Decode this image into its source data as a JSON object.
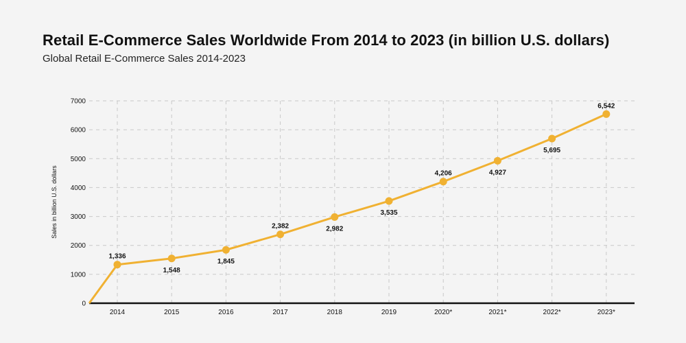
{
  "header": {
    "title": "Retail E-Commerce Sales Worldwide From 2014 to 2023 (in billion U.S. dollars)",
    "subtitle": "Global Retail E-Commerce Sales 2014-2023"
  },
  "chart_data": {
    "type": "line",
    "title": "Retail E-Commerce Sales Worldwide From 2014 to 2023 (in billion U.S. dollars)",
    "subtitle": "Global Retail E-Commerce Sales 2014-2023",
    "xlabel": "",
    "ylabel": "Sales in billion U.S. dollars",
    "categories": [
      "2014",
      "2015",
      "2016",
      "2017",
      "2018",
      "2019",
      "2020*",
      "2021*",
      "2022*",
      "2023*"
    ],
    "values": [
      1336,
      1548,
      1845,
      2382,
      2982,
      3535,
      4206,
      4927,
      5695,
      6542
    ],
    "data_labels": [
      "1,336",
      "1,548",
      "1,845",
      "2,382",
      "2,982",
      "3,535",
      "4,206",
      "4,927",
      "5,695",
      "6,542"
    ],
    "label_positions": [
      "above",
      "below",
      "below",
      "above",
      "below",
      "below",
      "above",
      "below",
      "below",
      "above"
    ],
    "ylim": [
      0,
      7000
    ],
    "yticks": [
      "0",
      "1000",
      "2000",
      "3000",
      "4000",
      "5000",
      "6000",
      "7000"
    ],
    "grid": true,
    "colors": {
      "line": "#f0b132",
      "marker": "#f0b132",
      "axis": "#111111",
      "grid": "#c8c8c8"
    }
  }
}
